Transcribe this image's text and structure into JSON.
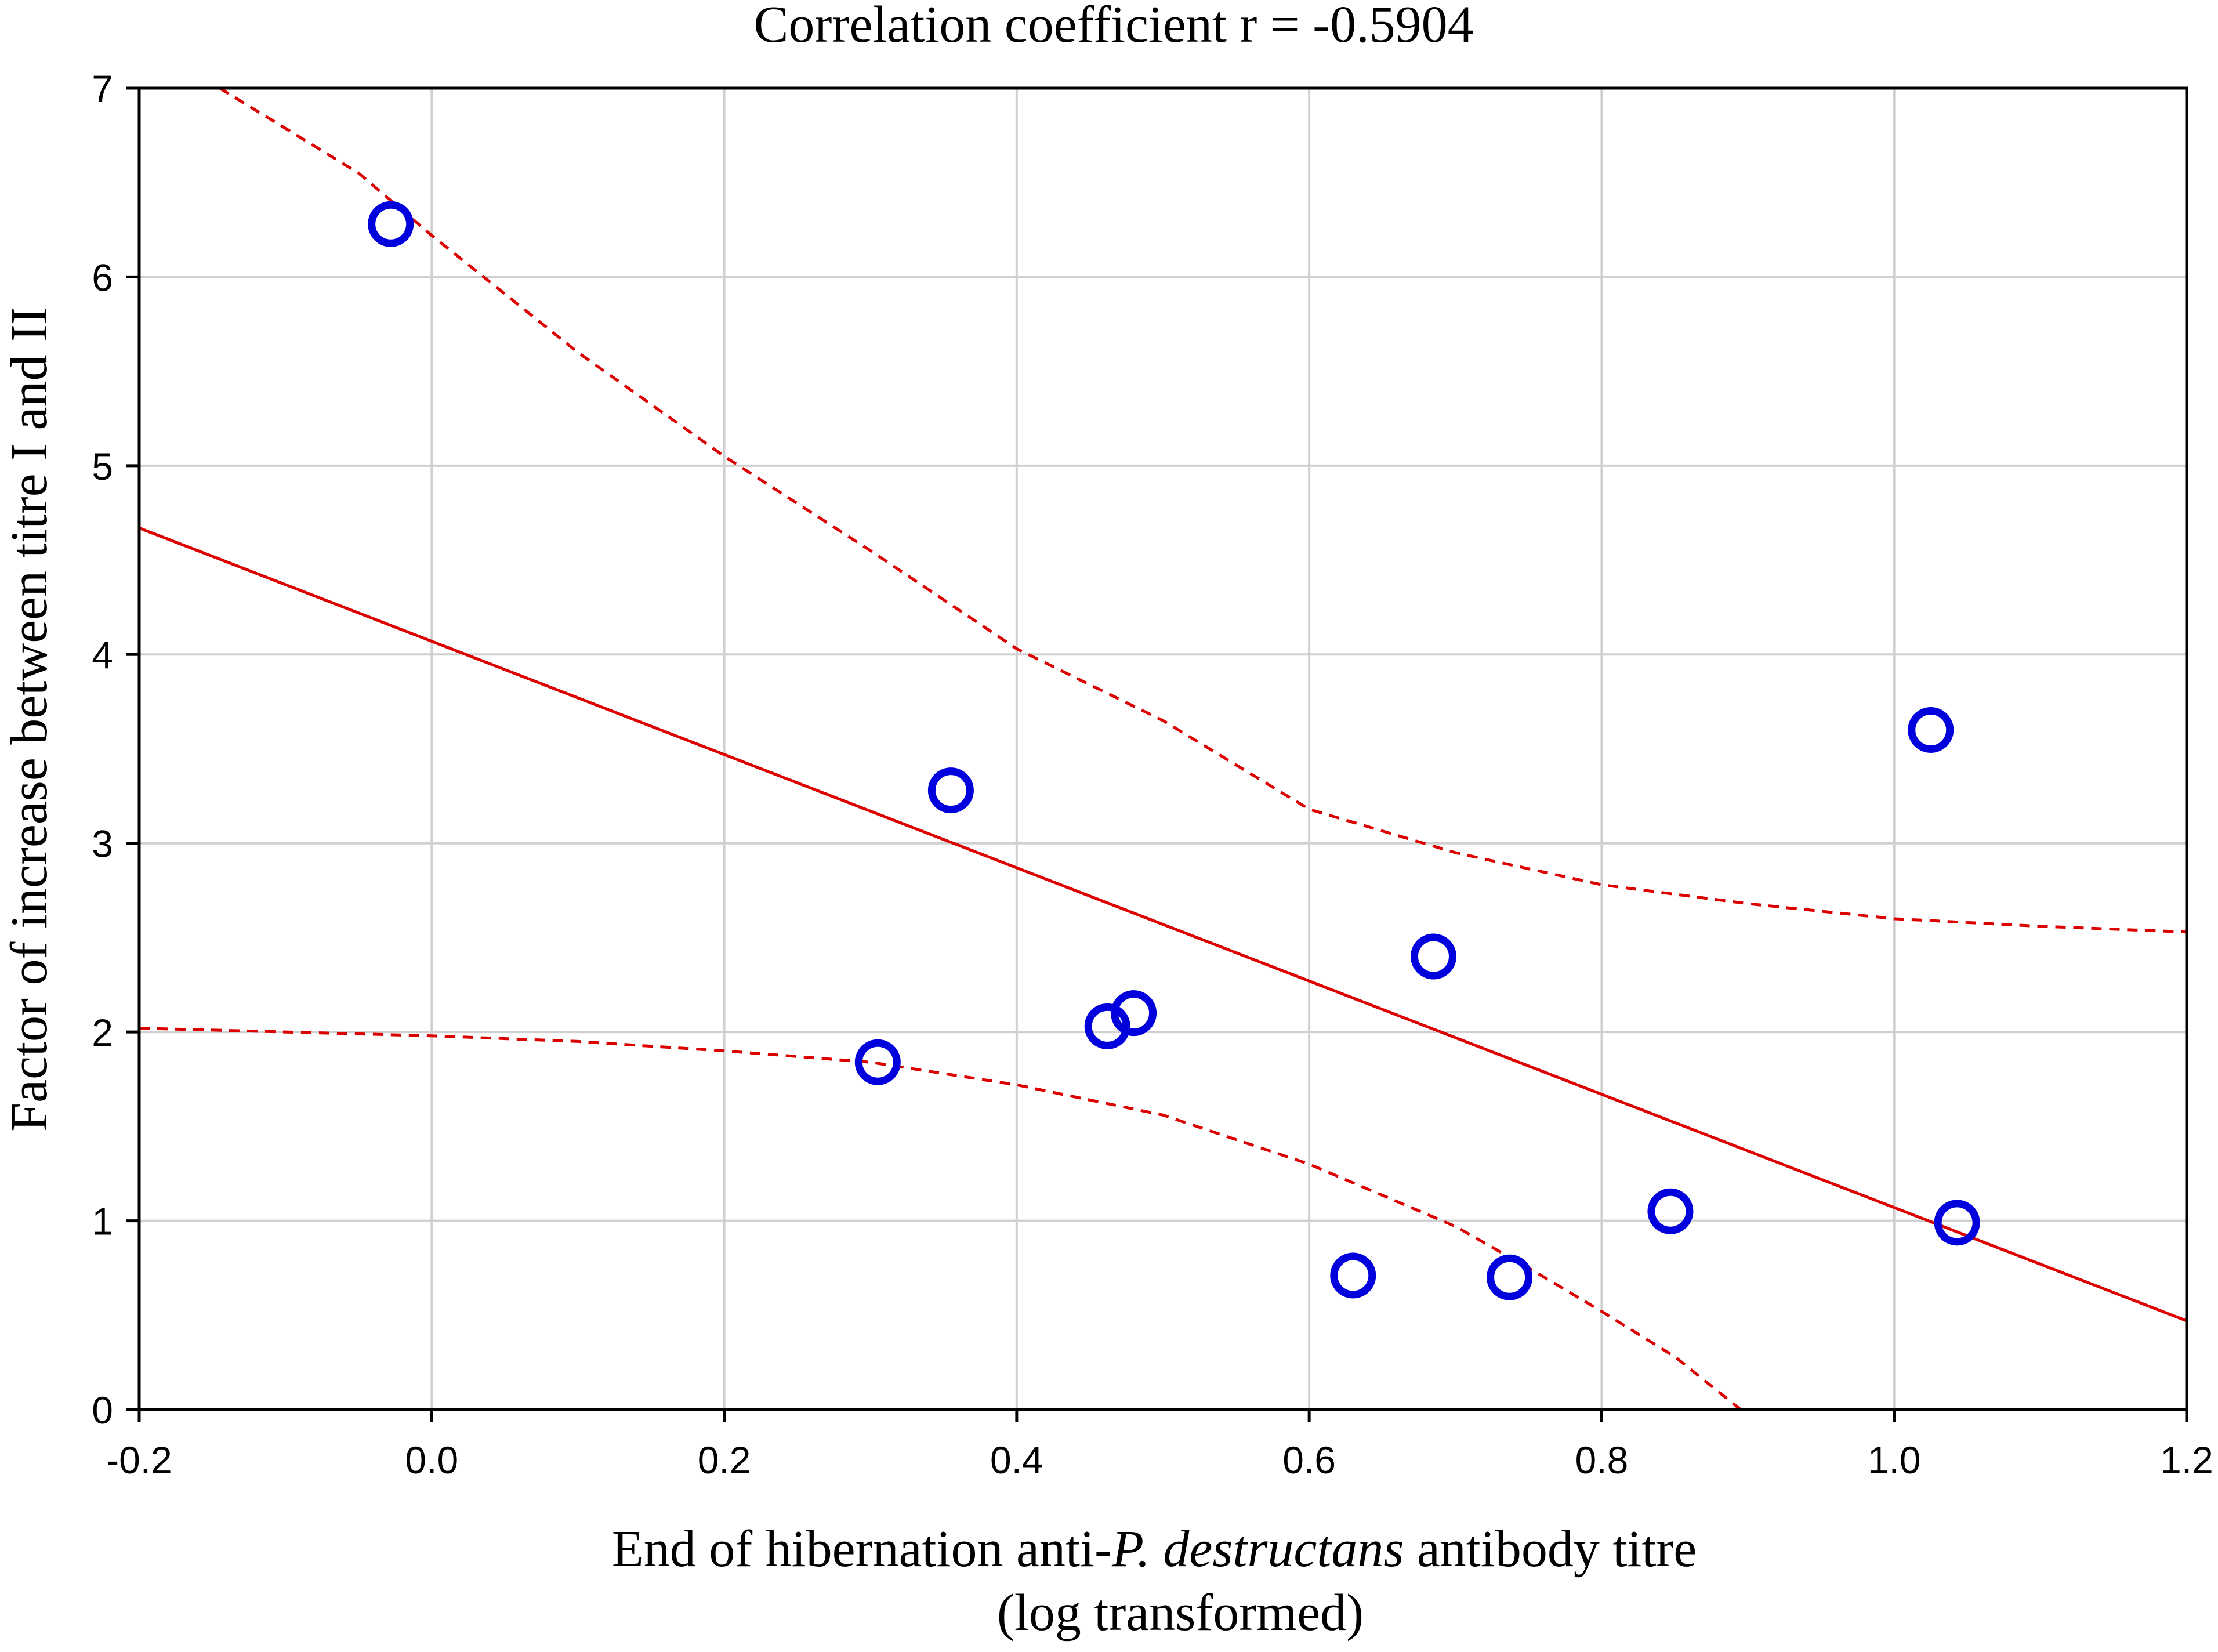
{
  "chart_data": {
    "type": "scatter",
    "title": "Correlation coefficient r = -0.5904",
    "xlabel_parts": [
      {
        "text": "End of hibernation anti-",
        "italic": false
      },
      {
        "text": "P. destructans",
        "italic": true
      },
      {
        "text": " antibody titre",
        "italic": false
      }
    ],
    "xlabel_line2": "(log transformed)",
    "ylabel": "Factor of increase between titre I and II",
    "xlim": [
      -0.2,
      1.2
    ],
    "ylim": [
      0,
      7
    ],
    "x_ticks": [
      -0.2,
      0.0,
      0.2,
      0.4,
      0.6,
      0.8,
      1.0,
      1.2
    ],
    "x_tick_labels": [
      "-0.2",
      "0.0",
      "0.2",
      "0.4",
      "0.6",
      "0.8",
      "1.0",
      "1.2"
    ],
    "y_ticks": [
      0,
      1,
      2,
      3,
      4,
      5,
      6,
      7
    ],
    "y_tick_labels": [
      "0",
      "1",
      "2",
      "3",
      "4",
      "5",
      "6",
      "7"
    ],
    "grid": true,
    "points": [
      {
        "x": -0.028,
        "y": 6.28
      },
      {
        "x": 0.355,
        "y": 3.28
      },
      {
        "x": 0.305,
        "y": 1.84
      },
      {
        "x": 0.462,
        "y": 2.03
      },
      {
        "x": 0.48,
        "y": 2.1
      },
      {
        "x": 0.63,
        "y": 0.71
      },
      {
        "x": 0.685,
        "y": 2.4
      },
      {
        "x": 0.737,
        "y": 0.7
      },
      {
        "x": 0.847,
        "y": 1.05
      },
      {
        "x": 1.025,
        "y": 3.6
      },
      {
        "x": 1.043,
        "y": 0.99
      }
    ],
    "regression_line": {
      "intercept": 4.07,
      "slope": -3.0
    },
    "confidence_upper": [
      {
        "x": -0.145,
        "y": 7.0
      },
      {
        "x": -0.05,
        "y": 6.55
      },
      {
        "x": 0.0,
        "y": 6.22
      },
      {
        "x": 0.1,
        "y": 5.6
      },
      {
        "x": 0.2,
        "y": 5.05
      },
      {
        "x": 0.3,
        "y": 4.55
      },
      {
        "x": 0.4,
        "y": 4.03
      },
      {
        "x": 0.5,
        "y": 3.65
      },
      {
        "x": 0.6,
        "y": 3.18
      },
      {
        "x": 0.7,
        "y": 2.95
      },
      {
        "x": 0.8,
        "y": 2.78
      },
      {
        "x": 0.9,
        "y": 2.68
      },
      {
        "x": 1.0,
        "y": 2.6
      },
      {
        "x": 1.1,
        "y": 2.56
      },
      {
        "x": 1.2,
        "y": 2.53
      }
    ],
    "confidence_lower": [
      {
        "x": -0.2,
        "y": 2.02
      },
      {
        "x": -0.1,
        "y": 2.0
      },
      {
        "x": 0.0,
        "y": 1.98
      },
      {
        "x": 0.1,
        "y": 1.95
      },
      {
        "x": 0.2,
        "y": 1.9
      },
      {
        "x": 0.3,
        "y": 1.84
      },
      {
        "x": 0.4,
        "y": 1.72
      },
      {
        "x": 0.5,
        "y": 1.56
      },
      {
        "x": 0.6,
        "y": 1.3
      },
      {
        "x": 0.7,
        "y": 0.97
      },
      {
        "x": 0.75,
        "y": 0.75
      },
      {
        "x": 0.8,
        "y": 0.52
      },
      {
        "x": 0.85,
        "y": 0.28
      },
      {
        "x": 0.895,
        "y": 0.0
      }
    ],
    "colors": {
      "points": "#0000dd",
      "regression": "#dd0000",
      "confidence": "#dd0000",
      "grid": "#d0d0d0"
    }
  }
}
